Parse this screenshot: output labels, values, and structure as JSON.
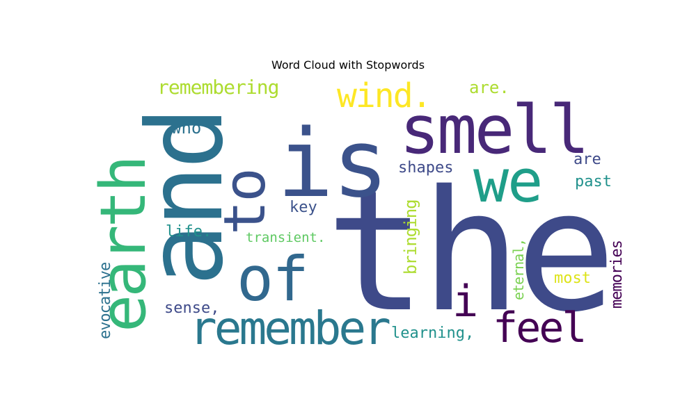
{
  "chart_data": {
    "type": "wordcloud",
    "title": "Word Cloud with Stopwords",
    "colormap": "viridis",
    "background": "#ffffff",
    "words": [
      {
        "text": "the",
        "weight": 1.0,
        "orientation": "horizontal",
        "color": "#3e4a89"
      },
      {
        "text": "and",
        "weight": 0.72,
        "orientation": "vertical",
        "color": "#2c718e"
      },
      {
        "text": "is",
        "weight": 0.66,
        "orientation": "horizontal",
        "color": "#3b528b"
      },
      {
        "text": "smell",
        "weight": 0.5,
        "orientation": "horizontal",
        "color": "#482878"
      },
      {
        "text": "earth",
        "weight": 0.5,
        "orientation": "vertical",
        "color": "#35b779"
      },
      {
        "text": "to",
        "weight": 0.43,
        "orientation": "vertical",
        "color": "#3b528b"
      },
      {
        "text": "we",
        "weight": 0.42,
        "orientation": "horizontal",
        "color": "#1f9e89"
      },
      {
        "text": "of",
        "weight": 0.4,
        "orientation": "horizontal",
        "color": "#31688e"
      },
      {
        "text": "remember",
        "weight": 0.3,
        "orientation": "horizontal",
        "color": "#2a788e"
      },
      {
        "text": "i",
        "weight": 0.29,
        "orientation": "horizontal",
        "color": "#440154"
      },
      {
        "text": "feel",
        "weight": 0.27,
        "orientation": "horizontal",
        "color": "#440154"
      },
      {
        "text": "wind.",
        "weight": 0.21,
        "orientation": "horizontal",
        "color": "#fde725"
      },
      {
        "text": "remembering",
        "weight": 0.12,
        "orientation": "horizontal",
        "color": "#addc30"
      },
      {
        "text": "are.",
        "weight": 0.1,
        "orientation": "horizontal",
        "color": "#addc30"
      },
      {
        "text": "who",
        "weight": 0.1,
        "orientation": "horizontal",
        "color": "#2c718e"
      },
      {
        "text": "shapes",
        "weight": 0.1,
        "orientation": "horizontal",
        "color": "#3e4a89"
      },
      {
        "text": "are",
        "weight": 0.1,
        "orientation": "horizontal",
        "color": "#3e4a89"
      },
      {
        "text": "past",
        "weight": 0.1,
        "orientation": "horizontal",
        "color": "#21918c"
      },
      {
        "text": "key",
        "weight": 0.1,
        "orientation": "horizontal",
        "color": "#3b528b"
      },
      {
        "text": "bringing",
        "weight": 0.1,
        "orientation": "vertical",
        "color": "#addc30"
      },
      {
        "text": "life.",
        "weight": 0.1,
        "orientation": "horizontal",
        "color": "#21918c"
      },
      {
        "text": "transient.",
        "weight": 0.09,
        "orientation": "horizontal",
        "color": "#5ec962"
      },
      {
        "text": "eternal,",
        "weight": 0.09,
        "orientation": "vertical",
        "color": "#7ad151"
      },
      {
        "text": "memories",
        "weight": 0.1,
        "orientation": "vertical",
        "color": "#440154"
      },
      {
        "text": "evocative",
        "weight": 0.1,
        "orientation": "vertical",
        "color": "#2c718e"
      },
      {
        "text": "most",
        "weight": 0.1,
        "orientation": "horizontal",
        "color": "#dde318"
      },
      {
        "text": "sense,",
        "weight": 0.1,
        "orientation": "horizontal",
        "color": "#3e4a89"
      },
      {
        "text": "learning,",
        "weight": 0.1,
        "orientation": "horizontal",
        "color": "#21918c"
      }
    ]
  }
}
